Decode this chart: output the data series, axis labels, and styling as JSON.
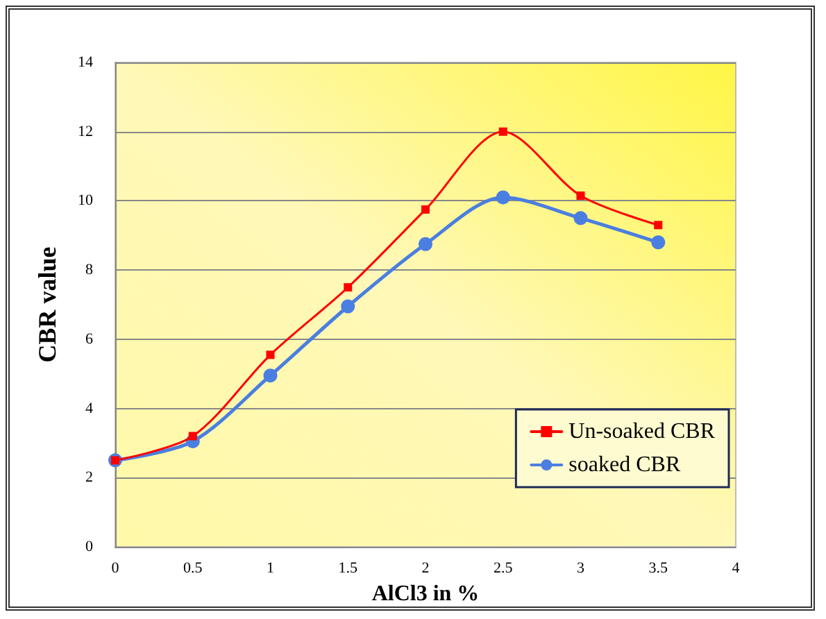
{
  "chart_data": {
    "type": "line",
    "xlabel": "AlCl3 in %",
    "ylabel": "CBR value",
    "x": [
      0,
      0.5,
      1,
      1.5,
      2,
      2.5,
      3,
      3.5
    ],
    "series": [
      {
        "name": "Un-soaked CBR",
        "color": "#ff0000",
        "marker": "square",
        "values": [
          2.5,
          3.2,
          5.55,
          7.5,
          9.75,
          12,
          10.15,
          9.3
        ]
      },
      {
        "name": "soaked CBR",
        "color": "#4a7ee0",
        "marker": "circle",
        "values": [
          2.5,
          3.05,
          4.95,
          6.95,
          8.75,
          10.1,
          9.5,
          8.8
        ]
      }
    ],
    "xlim": [
      0,
      4
    ],
    "xticks": [
      0,
      0.5,
      1,
      1.5,
      2,
      2.5,
      3,
      3.5,
      4
    ],
    "ylim": [
      0,
      14
    ],
    "yticks": [
      0,
      2,
      4,
      6,
      8,
      10,
      12,
      14
    ],
    "grid": "y",
    "legend": "bottom right"
  }
}
